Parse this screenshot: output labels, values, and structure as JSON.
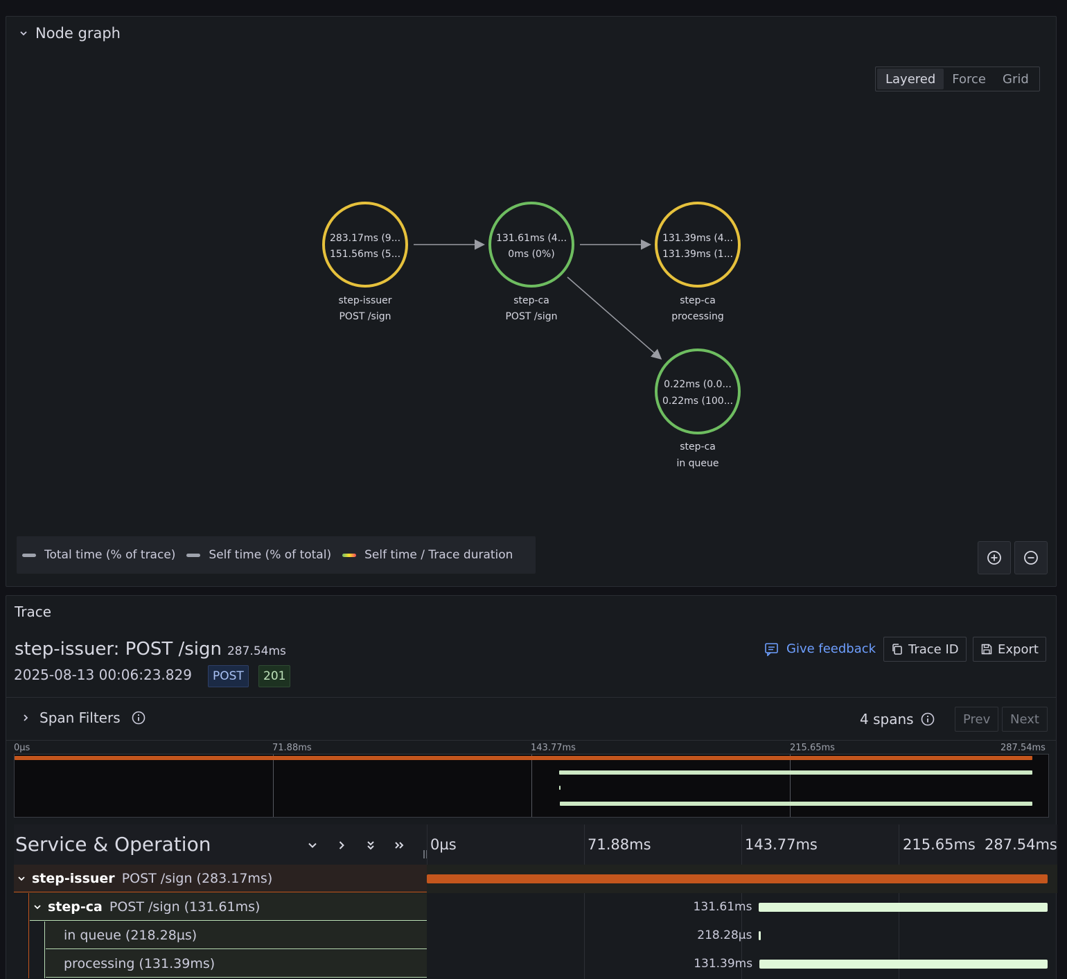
{
  "node_graph": {
    "title": "Node graph",
    "layouts": [
      "Layered",
      "Force",
      "Grid"
    ],
    "active_layout": "Layered",
    "nodes": [
      {
        "line1": "283.17ms (9...",
        "line2": "151.56ms (5...",
        "service": "step-issuer",
        "operation": "POST /sign",
        "color": "#e6c13c"
      },
      {
        "line1": "131.61ms (4...",
        "line2": "0ms (0%)",
        "service": "step-ca",
        "operation": "POST /sign",
        "color": "#6ebd60"
      },
      {
        "line1": "131.39ms (4...",
        "line2": "131.39ms (1...",
        "service": "step-ca",
        "operation": "processing",
        "color": "#e6c13c"
      },
      {
        "line1": "0.22ms (0.0...",
        "line2": "0.22ms (100...",
        "service": "step-ca",
        "operation": "in queue",
        "color": "#6ebd60"
      }
    ],
    "legend": {
      "total": "Total time (% of trace)",
      "self": "Self time (% of total)",
      "ratio": "Self time / Trace duration"
    }
  },
  "trace": {
    "panel_title": "Trace",
    "title": "step-issuer: POST /sign",
    "duration": "287.54ms",
    "timestamp": "2025-08-13 00:06:23.829",
    "method_tag": "POST",
    "status_tag": "201",
    "feedback": "Give feedback",
    "trace_id_btn": "Trace ID",
    "export_btn": "Export",
    "span_filters": "Span Filters",
    "spans_count": "4 spans",
    "prev": "Prev",
    "next": "Next",
    "ticks": [
      "0µs",
      "71.88ms",
      "143.77ms",
      "215.65ms",
      "287.54ms"
    ],
    "table_header": "Service & Operation",
    "total_ms": 287.54,
    "spans": [
      {
        "service": "step-issuer",
        "operation": "POST /sign (283.17ms)",
        "label": "",
        "start_ms": 0,
        "duration_ms": 283.17,
        "color": "#c4561d",
        "depth": 0,
        "collapsible": true
      },
      {
        "service": "step-ca",
        "operation": "POST /sign (131.61ms)",
        "label": "131.61ms",
        "start_ms": 151.5,
        "duration_ms": 131.61,
        "color": "#dff7d8",
        "depth": 1,
        "collapsible": true
      },
      {
        "service": "",
        "operation": "in queue (218.28µs)",
        "label": "218.28µs",
        "start_ms": 151.5,
        "duration_ms": 0.22,
        "color": "#dff7d8",
        "depth": 2,
        "collapsible": false
      },
      {
        "service": "",
        "operation": "processing (131.39ms)",
        "label": "131.39ms",
        "start_ms": 151.7,
        "duration_ms": 131.39,
        "color": "#dff7d8",
        "depth": 2,
        "collapsible": false
      }
    ]
  }
}
